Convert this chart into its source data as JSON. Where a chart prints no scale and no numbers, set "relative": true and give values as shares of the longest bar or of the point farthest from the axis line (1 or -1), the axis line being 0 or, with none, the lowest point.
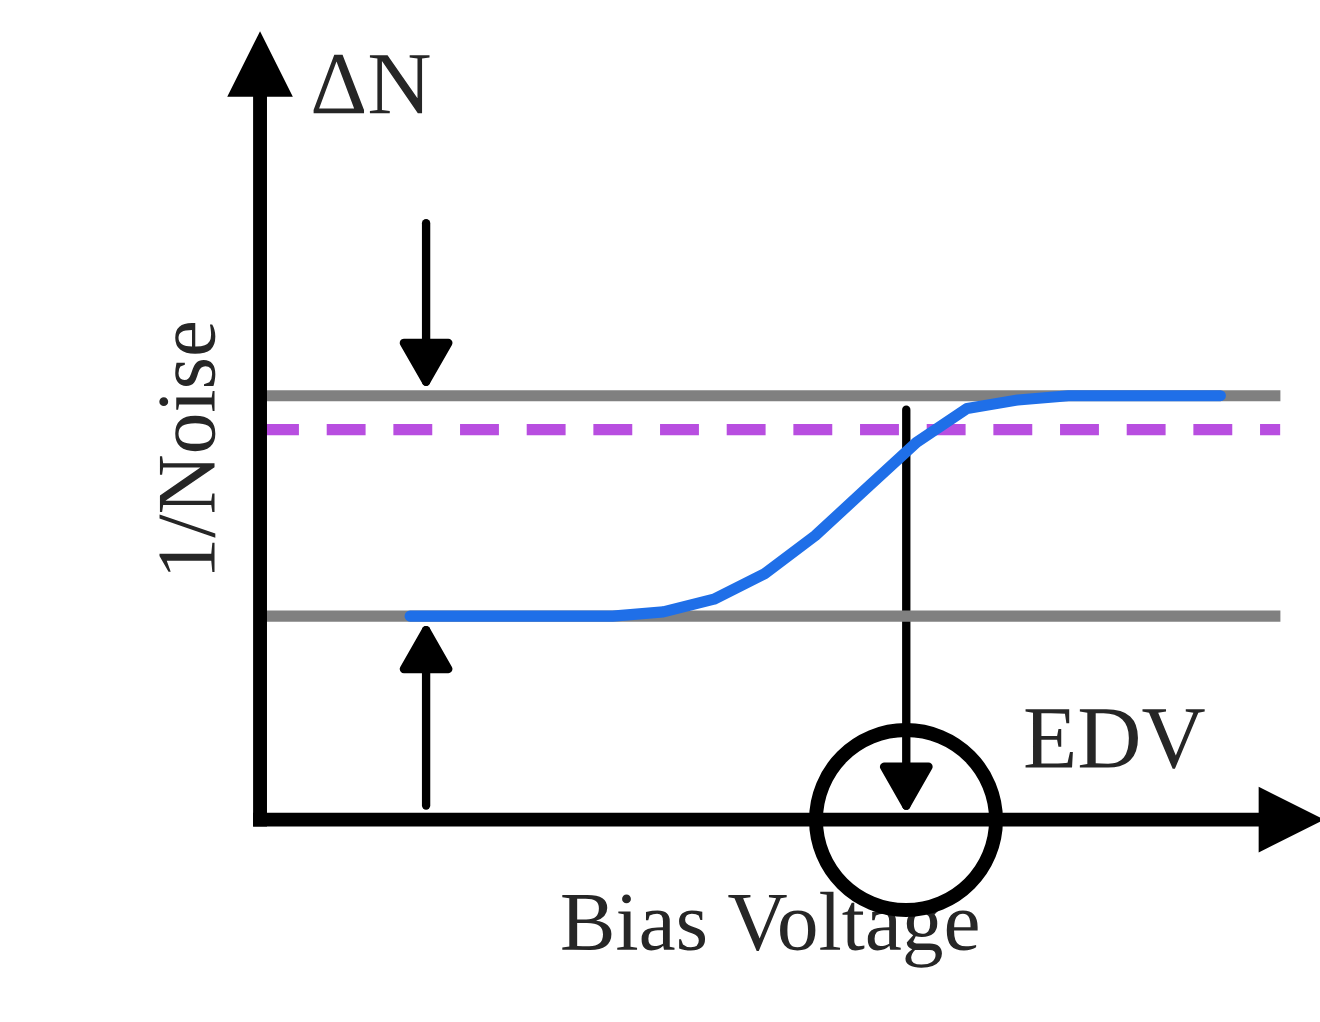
{
  "chart_data": {
    "type": "line",
    "relative": true,
    "xlabel": "Bias Voltage",
    "ylabel": "1/Noise",
    "annotations": [
      "ΔN",
      "EDV"
    ],
    "categories": [
      null,
      null,
      null,
      null,
      null,
      null,
      null,
      null,
      null,
      null,
      null,
      null,
      null,
      null,
      null,
      null,
      null
    ],
    "series": [
      {
        "color": "#1f6fe8",
        "values": [
          0.48,
          0.48,
          0.48,
          0.48,
          0.48,
          0.49,
          0.52,
          0.58,
          0.67,
          0.78,
          0.89,
          0.97,
          0.99,
          1.0,
          1.0,
          1.0,
          1.0
        ]
      }
    ],
    "ref_lines": [
      {
        "axis": "y",
        "value": 1.0,
        "color": "#808080",
        "line_style": "solid"
      },
      {
        "axis": "y",
        "value": 0.48,
        "color": "#808080",
        "line_style": "solid"
      },
      {
        "axis": "y",
        "value": 0.92,
        "color": "#b84ee0",
        "line_style": "dashed"
      }
    ],
    "legend": false
  }
}
